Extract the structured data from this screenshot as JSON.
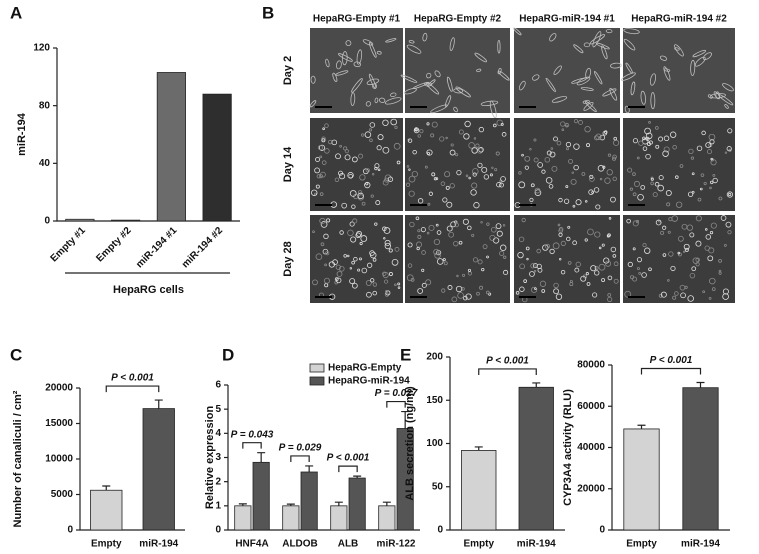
{
  "panels": {
    "labels": [
      "A",
      "B",
      "C",
      "D",
      "E"
    ]
  },
  "image_grid": {
    "columns": [
      "HepaRG-Empty #1",
      "HepaRG-Empty #2",
      "HepaRG-miR-194 #1",
      "HepaRG-miR-194 #2"
    ],
    "rows": [
      "Day 2",
      "Day 14",
      "Day 28"
    ]
  },
  "chart_data": [
    {
      "type": "bar",
      "ylabel": "miR-194",
      "categories": [
        "Empty #1",
        "Empty #2",
        "miR-194 #1",
        "miR-194 #2"
      ],
      "values": [
        1.2,
        0.6,
        103,
        88
      ],
      "colors": [
        "#9a9a9a",
        "#9a9a9a",
        "#6b6b6b",
        "#2e2e2e"
      ],
      "ylim": [
        0,
        120
      ],
      "yticks": [
        0,
        40,
        80,
        120
      ],
      "group_label": "HepaRG cells"
    },
    {
      "type": "bar",
      "ylabel": "Number of canaliculi / cm²",
      "categories": [
        "Empty",
        "miR-194"
      ],
      "values": [
        5600,
        17100
      ],
      "errors": [
        600,
        1200
      ],
      "colors": [
        "#d3d3d3",
        "#555555"
      ],
      "ylim": [
        0,
        20000
      ],
      "yticks": [
        0,
        5000,
        10000,
        15000,
        20000
      ],
      "annotation": "P < 0.001"
    },
    {
      "type": "grouped_bar",
      "ylabel": "Relative expression",
      "categories": [
        "HNF4A",
        "ALDOB",
        "ALB",
        "miR-122"
      ],
      "series": [
        {
          "name": "HepaRG-Empty",
          "color": "#d3d3d3",
          "values": [
            1,
            1,
            1,
            1
          ],
          "errors": [
            0.08,
            0.07,
            0.15,
            0.15
          ]
        },
        {
          "name": "HepaRG-miR-194",
          "color": "#555555",
          "values": [
            2.8,
            2.4,
            2.15,
            4.2
          ],
          "errors": [
            0.4,
            0.25,
            0.08,
            0.7
          ]
        }
      ],
      "ylim": [
        0,
        6
      ],
      "yticks": [
        0,
        1,
        2,
        3,
        4,
        5,
        6
      ],
      "annotations": [
        "P = 0.043",
        "P = 0.029",
        "P < 0.001",
        "P = 0.027"
      ],
      "legend": "top-right"
    },
    {
      "type": "bar",
      "ylabel": "ALB secretion (ng/ml)",
      "categories": [
        "Empty",
        "miR-194"
      ],
      "values": [
        92,
        165
      ],
      "errors": [
        4,
        5
      ],
      "colors": [
        "#d3d3d3",
        "#555555"
      ],
      "ylim": [
        0,
        200
      ],
      "yticks": [
        0,
        50,
        100,
        150,
        200
      ],
      "annotation": "P < 0.001"
    },
    {
      "type": "bar",
      "ylabel": "CYP3A4 activity (RLU)",
      "categories": [
        "Empty",
        "miR-194"
      ],
      "values": [
        49000,
        69000
      ],
      "errors": [
        1800,
        2500
      ],
      "colors": [
        "#d3d3d3",
        "#555555"
      ],
      "ylim": [
        0,
        80000
      ],
      "yticks": [
        0,
        20000,
        40000,
        60000,
        80000
      ],
      "annotation": "P < 0.001"
    }
  ]
}
